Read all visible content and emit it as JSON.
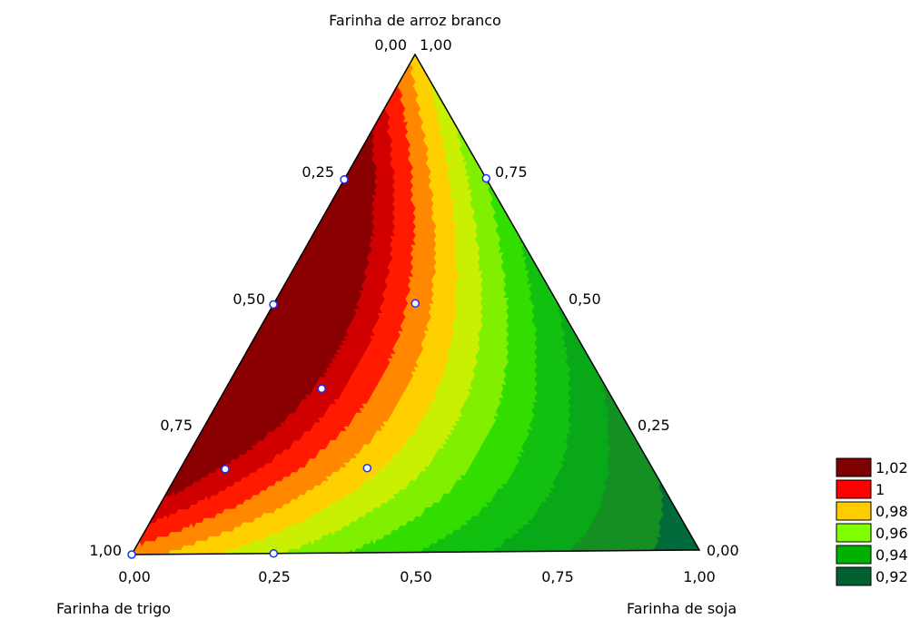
{
  "chart_data": {
    "type": "ternary-contour",
    "vertices": {
      "top": "Farinha de arroz branco",
      "left": "Farinha de trigo",
      "right": "Farinha de soja"
    },
    "tick_labels": {
      "top_vertex": [
        "0,00",
        "1,00"
      ],
      "left_edge": [
        "0,25",
        "0,50",
        "0,75",
        "1,00"
      ],
      "right_edge": [
        "0,75",
        "0,50",
        "0,25",
        "0,00"
      ],
      "bottom_edge": [
        "0,00",
        "0,25",
        "0,50",
        "0,75",
        "1,00"
      ]
    },
    "legend": {
      "position": "bottom-right",
      "items": [
        {
          "label": "1,02",
          "color": "#7f0000"
        },
        {
          "label": "1",
          "color": "#ff0000"
        },
        {
          "label": "0,98",
          "color": "#ffcc00"
        },
        {
          "label": "0,96",
          "color": "#80ff00"
        },
        {
          "label": "0,94",
          "color": "#00b000"
        },
        {
          "label": "0,92",
          "color": "#006030"
        }
      ]
    },
    "design_points": [
      {
        "trigo": 1.0,
        "arroz": 0.0,
        "soja": 0.0
      },
      {
        "trigo": 0.75,
        "arroz": 0.0,
        "soja": 0.25
      },
      {
        "trigo": 0.25,
        "arroz": 0.75,
        "soja": 0.0
      },
      {
        "trigo": 0.0,
        "arroz": 0.75,
        "soja": 0.25
      },
      {
        "trigo": 0.5,
        "arroz": 0.5,
        "soja": 0.0
      },
      {
        "trigo": 0.25,
        "arroz": 0.5,
        "soja": 0.25
      },
      {
        "trigo": 0.5,
        "arroz": 0.33,
        "soja": 0.17
      },
      {
        "trigo": 0.75,
        "arroz": 0.17,
        "soja": 0.08
      },
      {
        "trigo": 0.5,
        "arroz": 0.17,
        "soja": 0.33
      }
    ],
    "contour_bands": [
      {
        "color": "#006a3a",
        "label": "<0,92"
      },
      {
        "color": "#158f22",
        "label": "0,92–0,93"
      },
      {
        "color": "#08a818",
        "label": "0,93–0,94"
      },
      {
        "color": "#12c010",
        "label": "0,94–0,95"
      },
      {
        "color": "#33dd00",
        "label": "0,95–0,96"
      },
      {
        "color": "#80f000",
        "label": "0,96–0,97"
      },
      {
        "color": "#c8f000",
        "label": "0,97–0,98"
      },
      {
        "color": "#ffd000",
        "label": "0,98–0,99"
      },
      {
        "color": "#ff8800",
        "label": "0,99–1"
      },
      {
        "color": "#ff1a00",
        "label": "1–1,01"
      },
      {
        "color": "#d00000",
        "label": "1,01–1,02"
      },
      {
        "color": "#8a0000",
        "label": ">1,02"
      }
    ]
  }
}
